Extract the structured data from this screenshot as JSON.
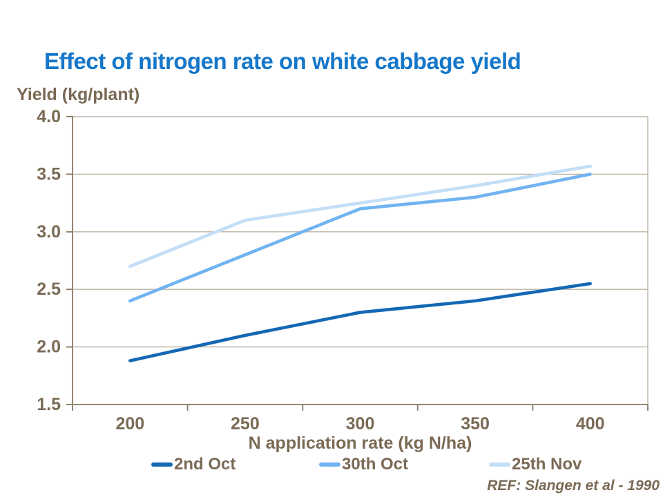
{
  "slide": {
    "ref_text": "REF: Slangen et al - 1990"
  },
  "colors": {
    "title_text": "#1577C9",
    "axis_text": "#7A6A55",
    "gridline": "#BBB2A3",
    "axis_line": "#93846F",
    "background": "#FFFFFF"
  },
  "chart_data": {
    "type": "line",
    "title": "Effect of nitrogen rate on white cabbage yield",
    "xlabel": "N application rate (kg N/ha)",
    "ylabel": "Yield (kg/plant)",
    "x": [
      200,
      250,
      300,
      350,
      400
    ],
    "x_tick_labels": [
      "200",
      "250",
      "300",
      "350",
      "400"
    ],
    "y_ticks": [
      1.5,
      2.0,
      2.5,
      3.0,
      3.5,
      4.0
    ],
    "y_tick_labels": [
      "1.5",
      "2.0",
      "2.5",
      "3.0",
      "3.5",
      "4.0"
    ],
    "ylim": [
      1.5,
      4.0
    ],
    "xlim_categories": true,
    "grid": "horizontal",
    "legend_position": "bottom",
    "series": [
      {
        "name": "2nd Oct",
        "color": "#1468B4",
        "values": [
          1.88,
          2.1,
          2.3,
          2.4,
          2.55
        ]
      },
      {
        "name": "30th Oct",
        "color": "#71B3F1",
        "values": [
          2.4,
          2.8,
          3.2,
          3.3,
          3.5
        ]
      },
      {
        "name": "25th Nov",
        "color": "#C3DEF7",
        "values": [
          2.7,
          3.1,
          3.25,
          3.4,
          3.57
        ]
      }
    ]
  }
}
